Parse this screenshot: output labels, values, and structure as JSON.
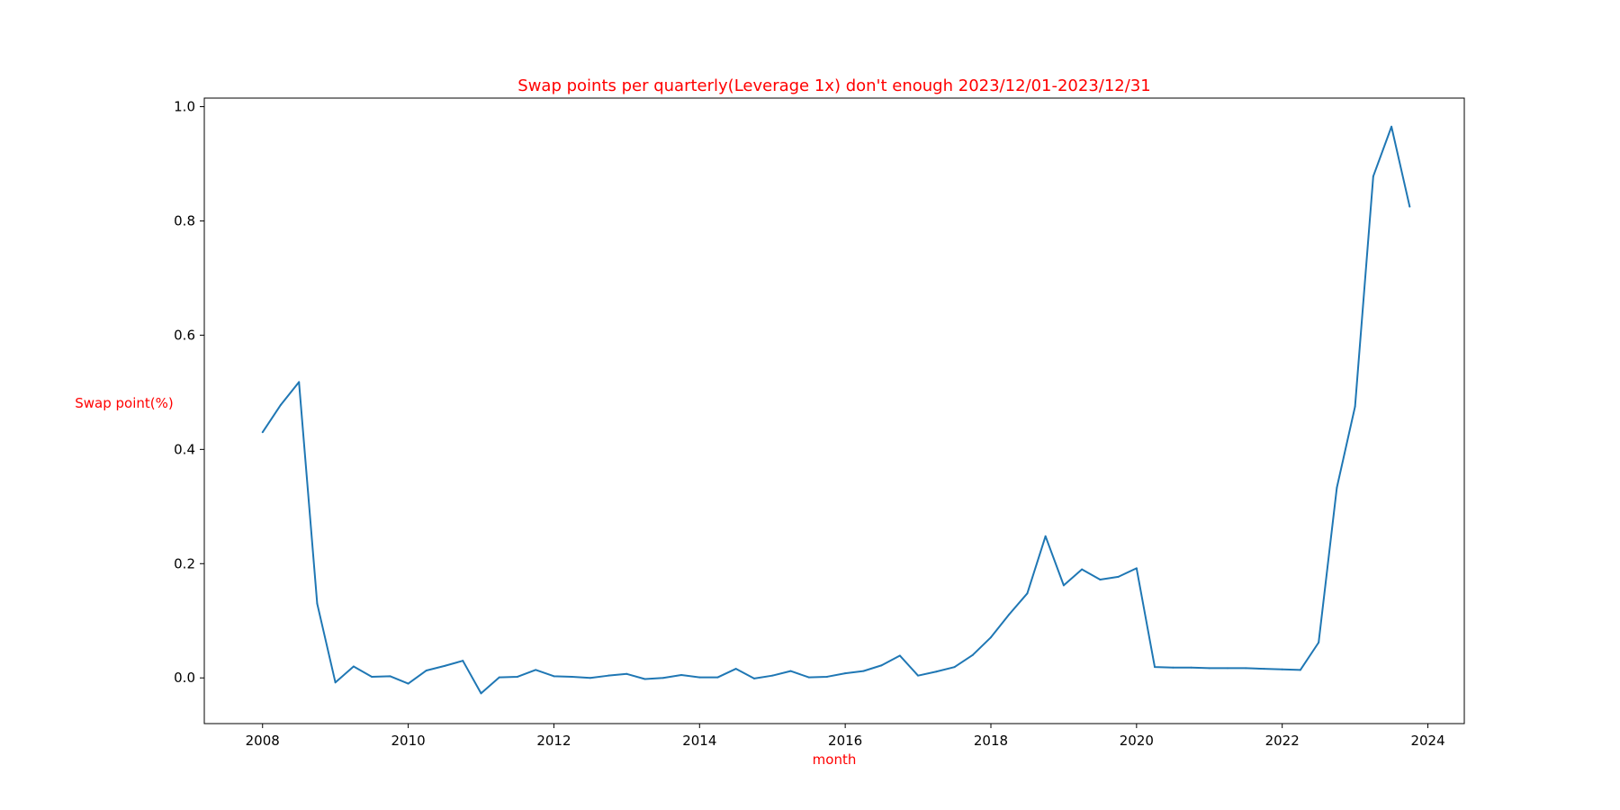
{
  "chart_data": {
    "type": "line",
    "title": "Swap points per quarterly(Leverage 1x) don't enough 2023/12/01-2023/12/31",
    "xlabel": "month",
    "ylabel": "Swap point(%)",
    "label_color": "#ff0000",
    "series_color": "#1f77b4",
    "xlim": [
      2007.2,
      2024.5
    ],
    "ylim": [
      -0.08,
      1.015
    ],
    "xticks": [
      2008,
      2010,
      2012,
      2014,
      2016,
      2018,
      2020,
      2022,
      2024
    ],
    "xtick_labels": [
      "2008",
      "2010",
      "2012",
      "2014",
      "2016",
      "2018",
      "2020",
      "2022",
      "2024"
    ],
    "yticks": [
      0.0,
      0.2,
      0.4,
      0.6,
      0.8,
      1.0
    ],
    "ytick_labels": [
      "0.0",
      "0.2",
      "0.4",
      "0.6",
      "0.8",
      "1.0"
    ],
    "grid": false,
    "legend": "none",
    "series": [
      {
        "x": [
          "2008-01",
          "2008-04",
          "2008-07",
          "2008-10",
          "2009-01",
          "2009-04",
          "2009-07",
          "2009-10",
          "2010-01",
          "2010-04",
          "2010-07",
          "2010-10",
          "2011-01",
          "2011-04",
          "2011-07",
          "2011-10",
          "2012-01",
          "2012-04",
          "2012-07",
          "2012-10",
          "2013-01",
          "2013-04",
          "2013-07",
          "2013-10",
          "2014-01",
          "2014-04",
          "2014-07",
          "2014-10",
          "2015-01",
          "2015-04",
          "2015-07",
          "2015-10",
          "2016-01",
          "2016-04",
          "2016-07",
          "2016-10",
          "2017-01",
          "2017-04",
          "2017-07",
          "2017-10",
          "2018-01",
          "2018-04",
          "2018-07",
          "2018-10",
          "2019-01",
          "2019-04",
          "2019-07",
          "2019-10",
          "2020-01",
          "2020-04",
          "2020-07",
          "2020-10",
          "2021-01",
          "2021-04",
          "2021-07",
          "2021-10",
          "2022-01",
          "2022-04",
          "2022-07",
          "2022-10",
          "2023-01",
          "2023-04",
          "2023-07",
          "2023-10"
        ],
        "values": [
          0.43,
          0.478,
          0.518,
          0.13,
          -0.008,
          0.02,
          0.002,
          0.003,
          -0.01,
          0.013,
          0.021,
          0.03,
          -0.027,
          0.001,
          0.002,
          0.014,
          0.003,
          0.002,
          0.0,
          0.004,
          0.007,
          -0.002,
          0.0,
          0.005,
          0.001,
          0.001,
          0.016,
          -0.001,
          0.004,
          0.012,
          0.001,
          0.002,
          0.008,
          0.012,
          0.022,
          0.039,
          0.004,
          0.011,
          0.019,
          0.04,
          0.071,
          0.111,
          0.148,
          0.248,
          0.162,
          0.19,
          0.172,
          0.177,
          0.192,
          0.019,
          0.018,
          0.018,
          0.017,
          0.017,
          0.017,
          0.016,
          0.015,
          0.014,
          0.062,
          0.333,
          0.475,
          0.878,
          0.965,
          0.825
        ]
      }
    ]
  }
}
